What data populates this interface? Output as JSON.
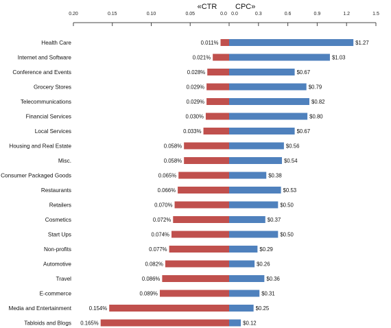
{
  "chart_data": [
    {
      "type": "bar",
      "orientation": "horizontal",
      "direction": "leftward",
      "title": "«CTR",
      "xlim": [
        0,
        0.2
      ],
      "ticks": [
        "0.20",
        "0.15",
        "0.10",
        "0.05",
        "0.0"
      ],
      "tick_values": [
        0.2,
        0.15,
        0.1,
        0.05,
        0
      ],
      "categories": [
        "Health Care",
        "Internet and Software",
        "Conference and Events",
        "Grocery Stores",
        "Telecommunications",
        "Financial Services",
        "Local Services",
        "Housing and Real Estate",
        "Misc.",
        "Consumer Packaged Goods",
        "Restaurants",
        "Retailers",
        "Cosmetics",
        "Start Ups",
        "Non-profits",
        "Automotive",
        "Travel",
        "E-commerce",
        "Media and Entertainment",
        "Tabloids and Blogs"
      ],
      "values": [
        0.011,
        0.021,
        0.028,
        0.029,
        0.029,
        0.03,
        0.033,
        0.058,
        0.058,
        0.065,
        0.066,
        0.07,
        0.072,
        0.074,
        0.077,
        0.082,
        0.086,
        0.089,
        0.154,
        0.165
      ],
      "value_labels": [
        "0.011%",
        "0.021%",
        "0.028%",
        "0.029%",
        "0.029%",
        "0.030%",
        "0.033%",
        "0.058%",
        "0.058%",
        "0.065%",
        "0.066%",
        "0.070%",
        "0.072%",
        "0.074%",
        "0.077%",
        "0.082%",
        "0.086%",
        "0.089%",
        "0.154%",
        "0.165%"
      ],
      "color": "#C0504D",
      "grid": false
    },
    {
      "type": "bar",
      "orientation": "horizontal",
      "direction": "rightward",
      "title": "CPC»",
      "xlim": [
        0,
        1.5
      ],
      "ticks": [
        "0.0",
        "0.3",
        "0.6",
        "0.9",
        "1.2",
        "1.5"
      ],
      "tick_values": [
        0,
        0.3,
        0.6,
        0.9,
        1.2,
        1.5
      ],
      "categories": [
        "Health Care",
        "Internet and Software",
        "Conference and Events",
        "Grocery Stores",
        "Telecommunications",
        "Financial Services",
        "Local Services",
        "Housing and Real Estate",
        "Misc.",
        "Consumer Packaged Goods",
        "Restaurants",
        "Retailers",
        "Cosmetics",
        "Start Ups",
        "Non-profits",
        "Automotive",
        "Travel",
        "E-commerce",
        "Media and Entertainment",
        "Tabloids and Blogs"
      ],
      "values": [
        1.27,
        1.03,
        0.67,
        0.79,
        0.82,
        0.8,
        0.67,
        0.56,
        0.54,
        0.38,
        0.53,
        0.5,
        0.37,
        0.5,
        0.29,
        0.26,
        0.36,
        0.31,
        0.25,
        0.12
      ],
      "value_labels": [
        "$1.27",
        "$1.03",
        "$0.67",
        "$0.79",
        "$0.82",
        "$0.80",
        "$0.67",
        "$0.56",
        "$0.54",
        "$0.38",
        "$0.53",
        "$0.50",
        "$0.37",
        "$0.50",
        "$0.29",
        "$0.26",
        "$0.36",
        "$0.31",
        "$0.25",
        "$0.12"
      ],
      "color": "#4F81BD",
      "grid": false
    }
  ]
}
